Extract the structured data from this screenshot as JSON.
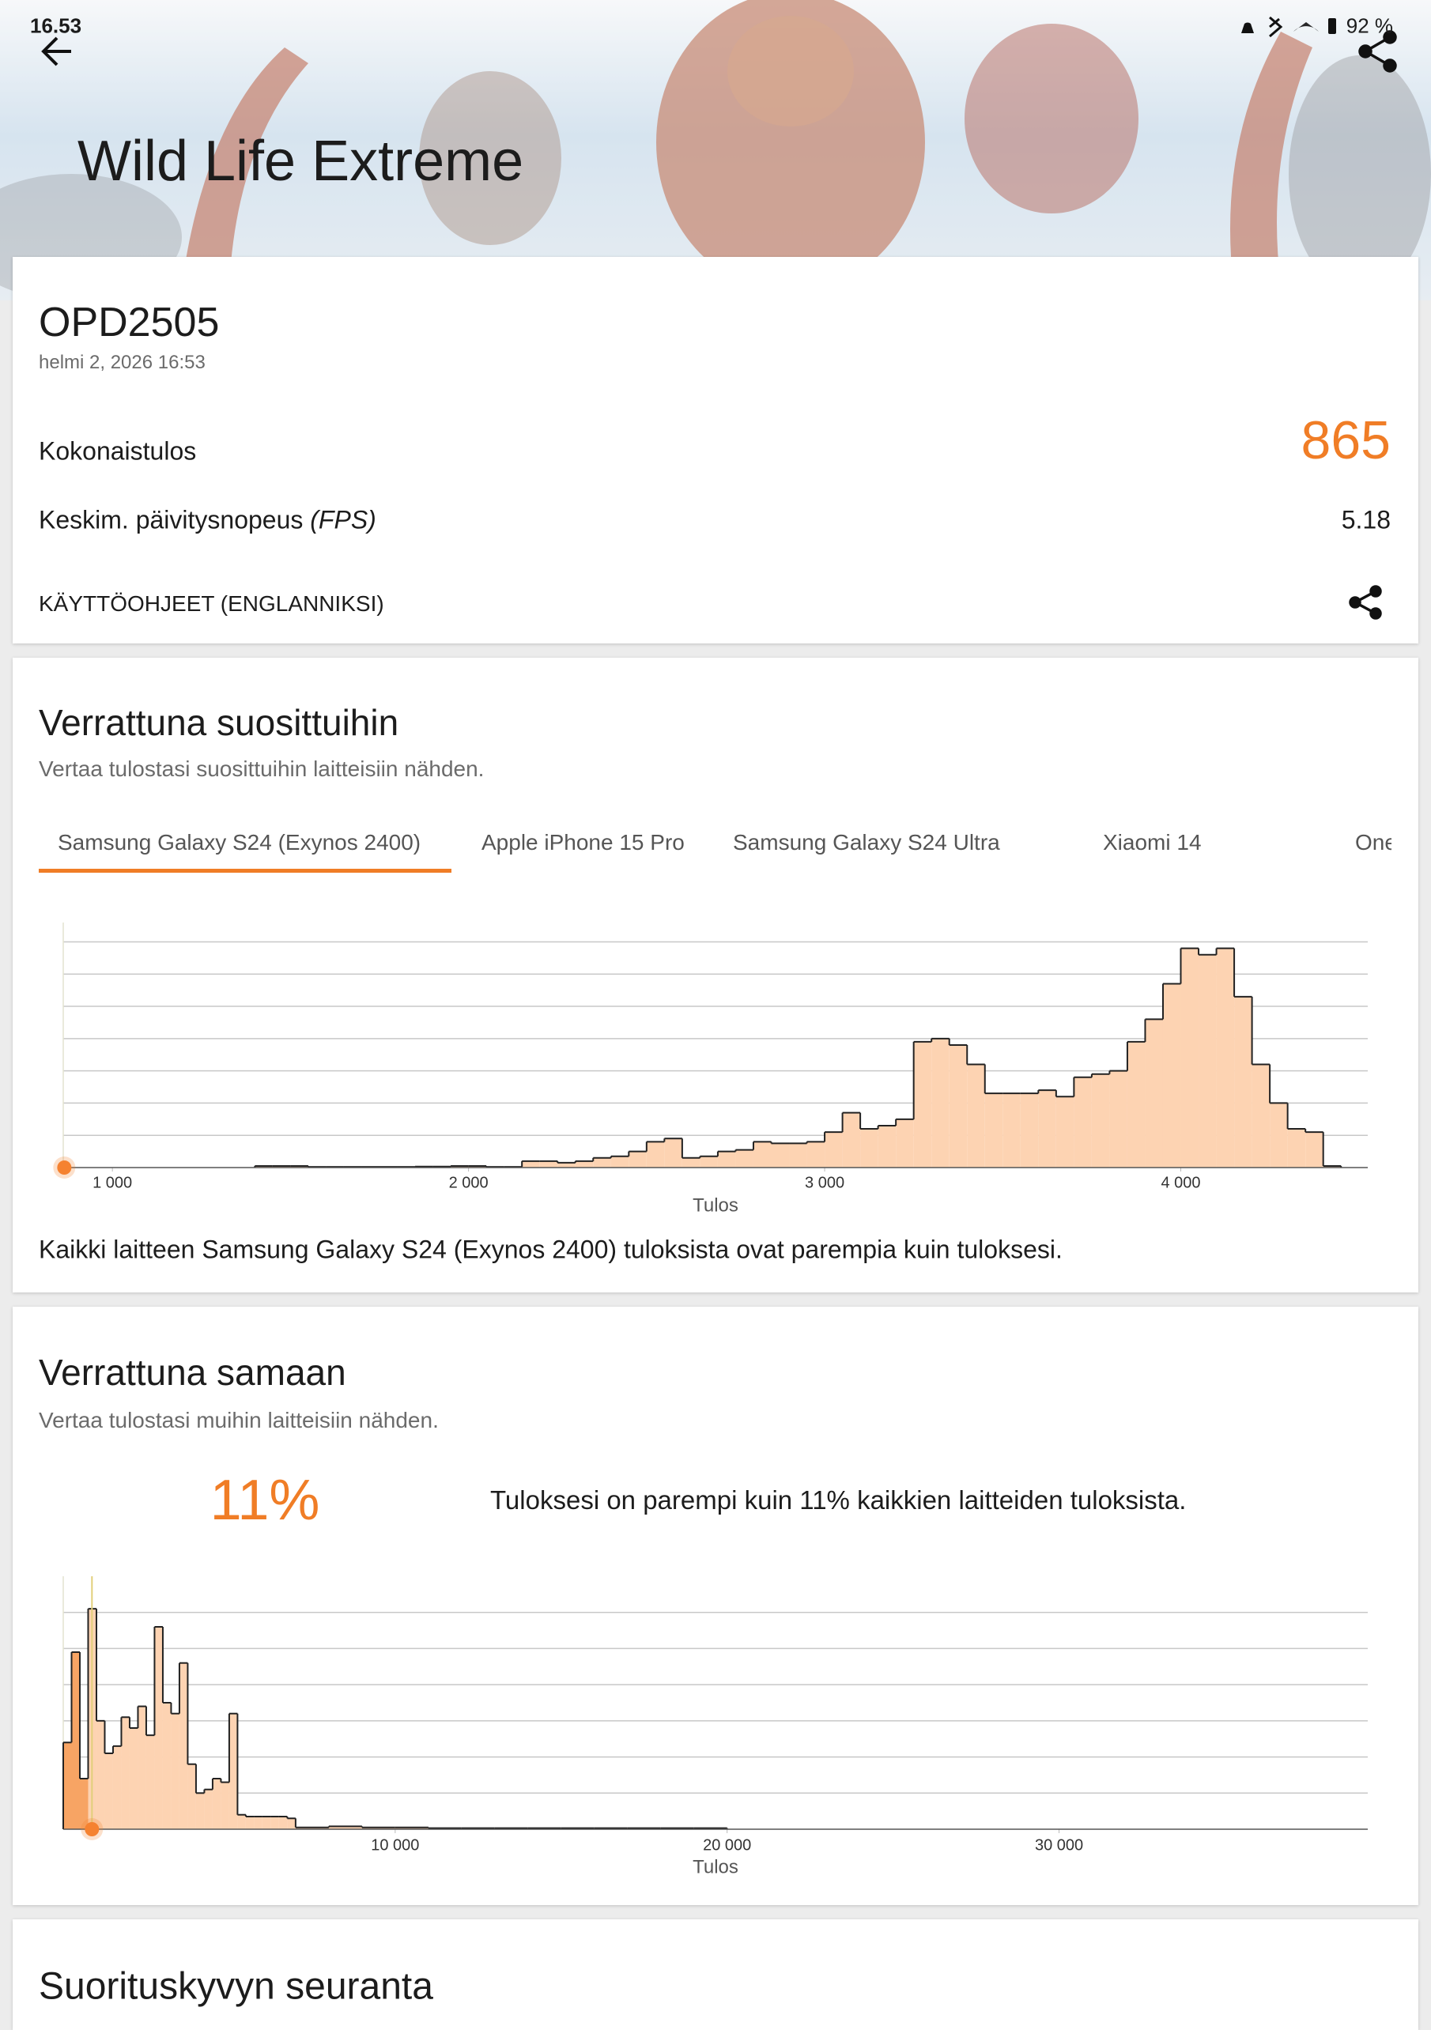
{
  "status_bar": {
    "time": "16.53",
    "battery": "92 %"
  },
  "header": {
    "title": "Wild Life Extreme"
  },
  "result": {
    "device": "OPD2505",
    "date": "helmi 2, 2026 16:53",
    "score_label": "Kokonaistulos",
    "score": 865,
    "fps_label": "Keskim. päivitysnopeus",
    "fps_unit": "(FPS)",
    "fps": 5.18,
    "guide_link": "KÄYTTÖOHJEET (ENGLANNIKSI)"
  },
  "popular": {
    "title": "Verrattuna suosittuihin",
    "subtitle": "Vertaa tulostasi suosittuihin laitteisiin nähden.",
    "tabs": [
      "Samsung Galaxy S24 (Exynos 2400)",
      "Apple iPhone 15 Pro",
      "Samsung Galaxy S24 Ultra",
      "Xiaomi 14",
      "One"
    ],
    "chart": {
      "type": "histogram",
      "x_label": "Tulos",
      "color": "#fdd3b2",
      "line_color": "#222222",
      "marker_color": "#f58230",
      "xlim": [
        862,
        4525
      ],
      "ylim": [
        0,
        7.6
      ],
      "grid": true,
      "xticks": [
        {
          "value": 1000,
          "label": "1 000"
        },
        {
          "value": 2000,
          "label": "2 000"
        },
        {
          "value": 3000,
          "label": "3 000"
        },
        {
          "value": 4000,
          "label": "4 000"
        }
      ],
      "bins": [
        1400,
        1450,
        1500,
        1550,
        1600,
        1650,
        1700,
        1750,
        1800,
        1850,
        1900,
        1950,
        2000,
        2050,
        2100,
        2150,
        2200,
        2250,
        2300,
        2350,
        2400,
        2450,
        2500,
        2550,
        2600,
        2650,
        2700,
        2750,
        2800,
        2850,
        2900,
        2950,
        3000,
        3050,
        3100,
        3150,
        3200,
        3250,
        3300,
        3350,
        3400,
        3450,
        3500,
        3550,
        3600,
        3650,
        3700,
        3750,
        3800,
        3850,
        3900,
        3950,
        4000,
        4050,
        4100,
        4150,
        4200,
        4250,
        4300,
        4350,
        4400,
        4450
      ],
      "values": [
        0.05,
        0.05,
        0.05,
        0.02,
        0.02,
        0.02,
        0.02,
        0.02,
        0.02,
        0.03,
        0.03,
        0.05,
        0.05,
        0.02,
        0.02,
        0.2,
        0.2,
        0.15,
        0.2,
        0.3,
        0.35,
        0.5,
        0.8,
        0.9,
        0.3,
        0.35,
        0.5,
        0.55,
        0.8,
        0.75,
        0.75,
        0.8,
        1.1,
        1.7,
        1.2,
        1.3,
        1.5,
        3.9,
        4.0,
        3.8,
        3.2,
        2.3,
        2.3,
        2.3,
        2.4,
        2.2,
        2.8,
        2.9,
        3.0,
        3.9,
        4.6,
        5.7,
        6.8,
        6.6,
        6.8,
        5.3,
        3.2,
        2.0,
        1.2,
        1.1,
        0.05
      ]
    },
    "note": "Kaikki laitteen Samsung Galaxy S24 (Exynos 2400) tuloksista ovat parempia kuin tuloksesi."
  },
  "same": {
    "title": "Verrattuna samaan",
    "subtitle": "Vertaa tulostasi muihin laitteisiin nähden.",
    "percentile": {
      "value": 11,
      "label": "11%"
    },
    "sentence": "Tuloksesi on parempi kuin 11% kaikkien laitteiden tuloksista.",
    "chart": {
      "type": "histogram",
      "x_label": "Tulos",
      "color": "#fdd3b2",
      "below_color": "#f7a464",
      "line_color": "#222222",
      "marker_color": "#f58230",
      "score_line_color": "#e2cf7a",
      "xlim": [
        0,
        39300
      ],
      "ylim": [
        0,
        7
      ],
      "grid": true,
      "xticks": [
        {
          "value": 10000,
          "label": "10 000"
        },
        {
          "value": 20000,
          "label": "20 000"
        },
        {
          "value": 30000,
          "label": "30 000"
        }
      ],
      "bins": [
        0,
        250,
        500,
        750,
        1000,
        1250,
        1500,
        1750,
        2000,
        2250,
        2500,
        2750,
        3000,
        3250,
        3500,
        3750,
        4000,
        4250,
        4500,
        4750,
        5000,
        5250,
        5500,
        5750,
        6000,
        6250,
        6500,
        6750,
        7000,
        8000,
        9000,
        10000,
        11000,
        12000,
        13000,
        14000,
        15000,
        16000,
        17000,
        18000,
        19000,
        20000
      ],
      "values": [
        2.4,
        4.9,
        1.4,
        6.1,
        3.0,
        2.1,
        2.3,
        3.1,
        2.8,
        3.4,
        2.6,
        5.6,
        3.5,
        3.2,
        4.6,
        1.8,
        1.0,
        1.1,
        1.4,
        1.3,
        3.2,
        0.4,
        0.35,
        0.35,
        0.35,
        0.35,
        0.35,
        0.3,
        0.05,
        0.08,
        0.05,
        0.05,
        0.03,
        0.03,
        0.03,
        0.03,
        0.03,
        0.03,
        0.03,
        0.03,
        0.03
      ]
    }
  },
  "tracking": {
    "title": "Suorituskyvyn seuranta"
  }
}
